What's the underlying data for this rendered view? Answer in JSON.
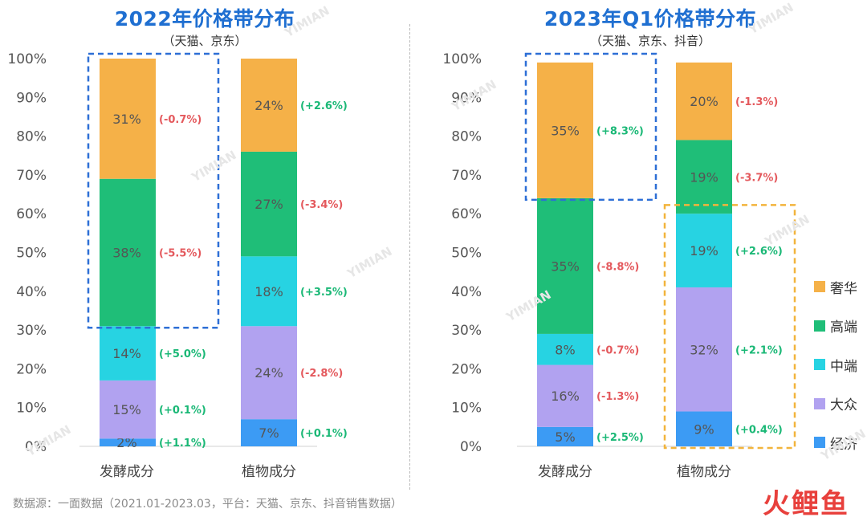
{
  "panels": [
    {
      "title": "2022年价格带分布",
      "subtitle": "（天猫、京东）"
    },
    {
      "title": "2023年Q1价格带分布",
      "subtitle": "（天猫、京东、抖音）"
    }
  ],
  "legend": [
    {
      "label": "奢华",
      "color": "#f5b148"
    },
    {
      "label": "高端",
      "color": "#1fbe78"
    },
    {
      "label": "中端",
      "color": "#27d3e2"
    },
    {
      "label": "大众",
      "color": "#b1a2f0"
    },
    {
      "label": "经济",
      "color": "#3c9bf4"
    }
  ],
  "colors": {
    "positive": "#1ab876",
    "negative": "#e4595d",
    "highlight_blue": "#2d6fd6",
    "highlight_orange": "#f2b43c"
  },
  "chart_data": [
    {
      "type": "bar",
      "stacked": true,
      "title": "2022年价格带分布",
      "subtitle": "（天猫、京东）",
      "categories": [
        "发酵成分",
        "植物成分"
      ],
      "ylim": [
        0,
        100
      ],
      "yticks": [
        "0%",
        "10%",
        "20%",
        "30%",
        "40%",
        "50%",
        "60%",
        "70%",
        "80%",
        "90%",
        "100%"
      ],
      "series": [
        {
          "name": "经济",
          "values": [
            2,
            7
          ],
          "labels": [
            "2%",
            "7%"
          ],
          "changes": [
            "(+1.1%)",
            "(+0.1%)"
          ]
        },
        {
          "name": "大众",
          "values": [
            15,
            24
          ],
          "labels": [
            "15%",
            "24%"
          ],
          "changes": [
            "(+0.1%)",
            "(-2.8%)"
          ]
        },
        {
          "name": "中端",
          "values": [
            14,
            18
          ],
          "labels": [
            "14%",
            "18%"
          ],
          "changes": [
            "(+5.0%)",
            "(+3.5%)"
          ]
        },
        {
          "name": "高端",
          "values": [
            38,
            27
          ],
          "labels": [
            "38%",
            "27%"
          ],
          "changes": [
            "(-5.5%)",
            "(-3.4%)"
          ]
        },
        {
          "name": "奢华",
          "values": [
            31,
            24
          ],
          "labels": [
            "31%",
            "24%"
          ],
          "changes": [
            "(-0.7%)",
            "(+2.6%)"
          ]
        }
      ]
    },
    {
      "type": "bar",
      "stacked": true,
      "title": "2023年Q1价格带分布",
      "subtitle": "（天猫、京东、抖音）",
      "categories": [
        "发酵成分",
        "植物成分"
      ],
      "ylim": [
        0,
        100
      ],
      "yticks": [
        "0%",
        "10%",
        "20%",
        "30%",
        "40%",
        "50%",
        "60%",
        "70%",
        "80%",
        "90%",
        "100%"
      ],
      "series": [
        {
          "name": "经济",
          "values": [
            5,
            9
          ],
          "labels": [
            "5%",
            "9%"
          ],
          "changes": [
            "(+2.5%)",
            "(+0.4%)"
          ]
        },
        {
          "name": "大众",
          "values": [
            16,
            32
          ],
          "labels": [
            "16%",
            "32%"
          ],
          "changes": [
            "(-1.3%)",
            "(+2.1%)"
          ]
        },
        {
          "name": "中端",
          "values": [
            8,
            19
          ],
          "labels": [
            "8%",
            "19%"
          ],
          "changes": [
            "(-0.7%)",
            "(+2.6%)"
          ]
        },
        {
          "name": "高端",
          "values": [
            35,
            19
          ],
          "labels": [
            "35%",
            "19%"
          ],
          "changes": [
            "(-8.8%)",
            "(-3.7%)"
          ]
        },
        {
          "name": "奢华",
          "values": [
            35,
            20
          ],
          "labels": [
            "35%",
            "20%"
          ],
          "changes": [
            "(+8.3%)",
            "(-1.3%)"
          ]
        }
      ]
    }
  ],
  "highlights": [
    {
      "panel": 0,
      "category": 0,
      "range": [
        31,
        100
      ],
      "color": "highlight_blue"
    },
    {
      "panel": 1,
      "category": 0,
      "range": [
        64,
        100
      ],
      "color": "highlight_blue"
    },
    {
      "panel": 1,
      "category": 1,
      "range": [
        0,
        61
      ],
      "color": "highlight_orange"
    }
  ],
  "watermark": "YIMIAN",
  "source": "数据源：一面数据（2021.01-2023.03，平台：天猫、京东、抖音销售数据）",
  "brand": "火鲤鱼"
}
